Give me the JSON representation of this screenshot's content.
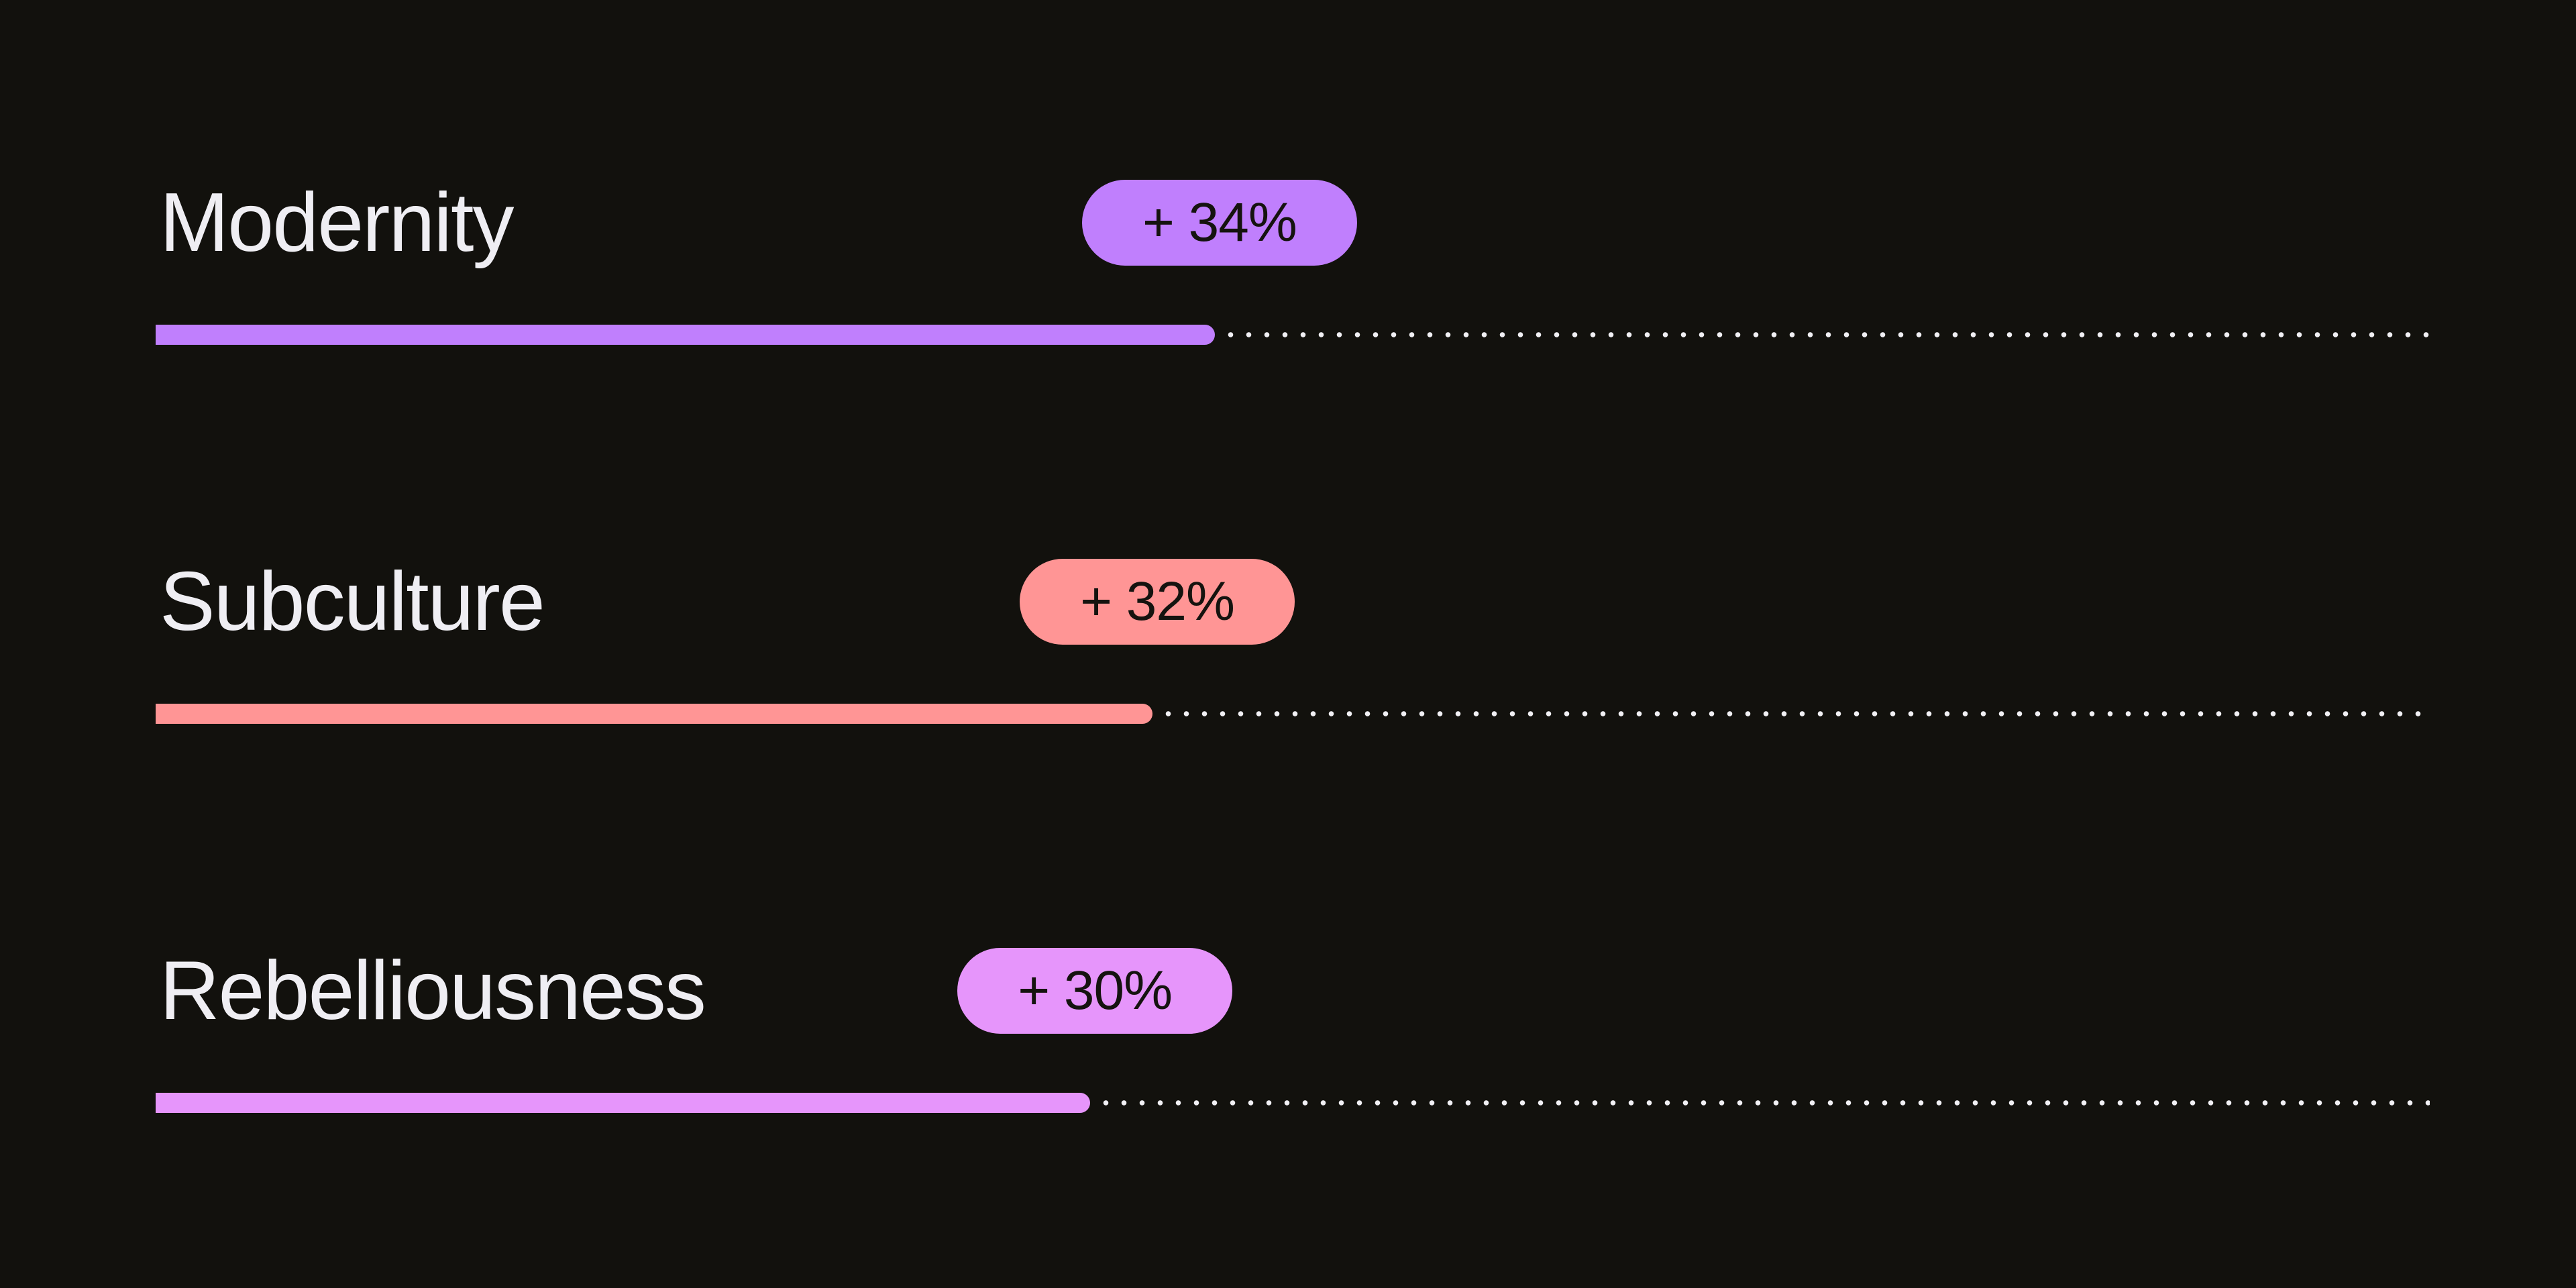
{
  "chart_data": {
    "type": "bar",
    "orientation": "horizontal",
    "xlim": [
      0,
      73
    ],
    "categories": [
      "Modernity",
      "Subculture",
      "Rebelliousness"
    ],
    "values": [
      34,
      32,
      30
    ],
    "value_labels": [
      "+ 34%",
      "+ 32%",
      "+ 30%"
    ],
    "colors": [
      "#c07ffd",
      "#ff9595",
      "#e695fb"
    ],
    "grid": false,
    "legend": "none"
  }
}
